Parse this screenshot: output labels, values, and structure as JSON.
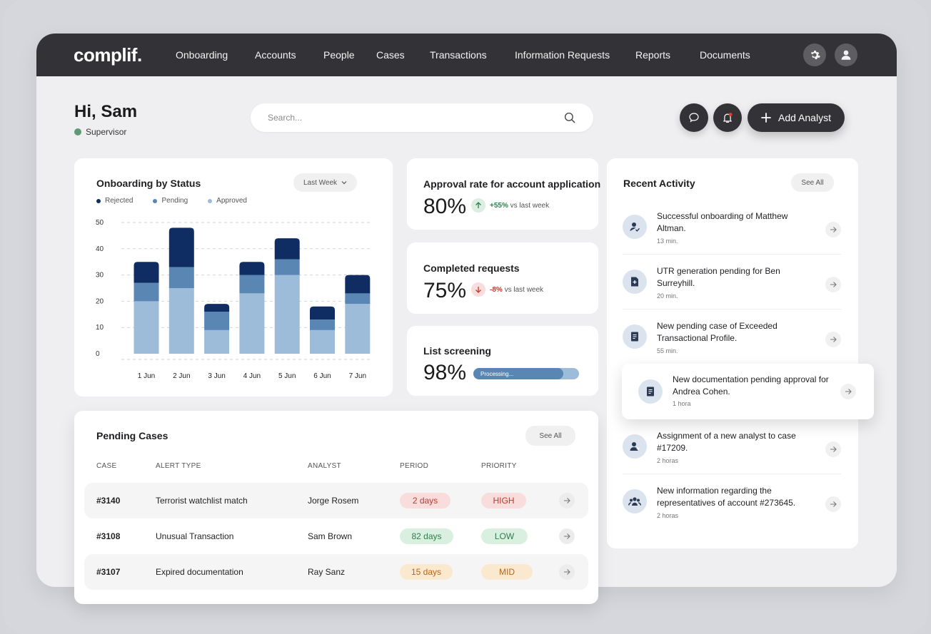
{
  "nav": {
    "logo": "complif.",
    "items": [
      "Onboarding",
      "Accounts",
      "People",
      "Cases",
      "Transactions",
      "Information Requests",
      "Reports",
      "Documents"
    ],
    "settings_icon": "gear-icon",
    "profile_icon": "user-icon"
  },
  "header": {
    "greeting": "Hi, Sam",
    "role": "Supervisor",
    "search_placeholder": "Search...",
    "add_analyst_label": "Add Analyst"
  },
  "onboarding_card": {
    "title": "Onboarding by Status",
    "filter_label": "Last Week",
    "legend": [
      {
        "label": "Rejected",
        "color": "#0f2d63"
      },
      {
        "label": "Pending",
        "color": "#5a86b4"
      },
      {
        "label": "Approved",
        "color": "#9dbcda"
      }
    ]
  },
  "chart_data": {
    "type": "bar",
    "stacked": true,
    "categories": [
      "1 Jun",
      "2 Jun",
      "3 Jun",
      "4 Jun",
      "5 Jun",
      "6 Jun",
      "7 Jun"
    ],
    "series": [
      {
        "name": "Approved",
        "values": [
          20,
          25,
          9,
          23,
          30,
          9,
          19
        ]
      },
      {
        "name": "Pending",
        "values": [
          7,
          8,
          7,
          7,
          6,
          4,
          4
        ]
      },
      {
        "name": "Rejected",
        "values": [
          8,
          15,
          3,
          5,
          8,
          5,
          7
        ]
      }
    ],
    "yticks": [
      0,
      10,
      20,
      30,
      40,
      50
    ],
    "ylim": [
      0,
      50
    ],
    "grid": true,
    "legend_position": "top-left",
    "colors": {
      "Rejected": "#0f2d63",
      "Pending": "#5a86b4",
      "Approved": "#9dbcda"
    }
  },
  "metrics": {
    "approval": {
      "title": "Approval rate for account application",
      "value": "80%",
      "delta": "+55%",
      "delta_suffix": "vs last week"
    },
    "completed": {
      "title": "Completed requests",
      "value": "75%",
      "delta": "-8%",
      "delta_suffix": "vs last week"
    },
    "screening": {
      "title": "List screening",
      "value": "98%",
      "progress_label": "Processing...",
      "progress": 0.85
    }
  },
  "activity": {
    "title": "Recent Activity",
    "see_all": "See All",
    "items": [
      {
        "text": "Successful onboarding of Matthew Altman.",
        "time": "13 min.",
        "icon": "user-check-icon"
      },
      {
        "text": "UTR generation pending for Ben Surreyhill.",
        "time": "20 min.",
        "icon": "file-plus-icon"
      },
      {
        "text": "New pending case of Exceeded Transactional Profile.",
        "time": "55 min.",
        "icon": "document-icon"
      },
      {
        "text": "New documentation pending approval for Andrea Cohen.",
        "time": "1 hora",
        "icon": "document-icon"
      },
      {
        "text": "Assignment of a new analyst to case #17209.",
        "time": "2 horas",
        "icon": "user-plus-icon"
      },
      {
        "text": "New information regarding the representatives of account #273645.",
        "time": "2 horas",
        "icon": "group-icon"
      }
    ]
  },
  "cases": {
    "title": "Pending Cases",
    "see_all": "See All",
    "headers": [
      "CASE",
      "ALERT TYPE",
      "ANALYST",
      "PERIOD",
      "PRIORITY"
    ],
    "rows": [
      {
        "case": "#3140",
        "alert": "Terrorist watchlist match",
        "analyst": "Jorge Rosem",
        "period": "2 days",
        "priority": "HIGH",
        "tone": "red"
      },
      {
        "case": "#3108",
        "alert": "Unusual Transaction",
        "analyst": "Sam Brown",
        "period": "82 days",
        "priority": "LOW",
        "tone": "green"
      },
      {
        "case": "#3107",
        "alert": "Expired documentation",
        "analyst": "Ray Sanz",
        "period": "15 days",
        "priority": "MID",
        "tone": "orange"
      }
    ],
    "tone_colors": {
      "red": {
        "bg": "#f9dcdc",
        "fg": "#c0392b"
      },
      "green": {
        "bg": "#d9efdf",
        "fg": "#2f7d4a"
      },
      "orange": {
        "bg": "#fbe9cf",
        "fg": "#b8651b"
      }
    }
  }
}
